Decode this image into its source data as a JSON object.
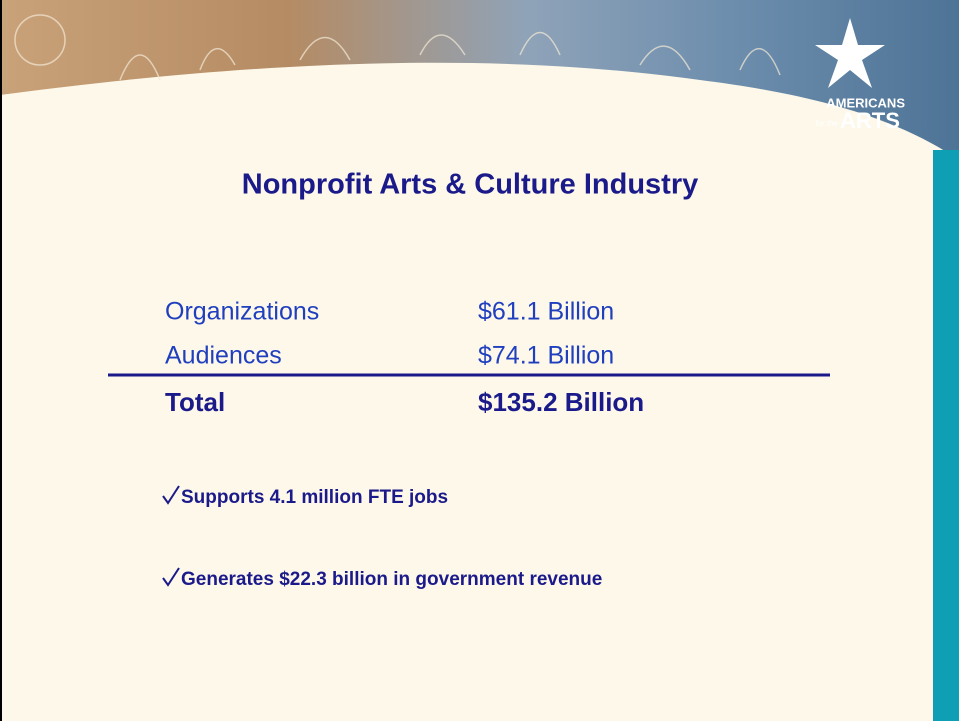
{
  "logo": {
    "line1": "AMERICANS",
    "prefix": "for the",
    "line2": "ARTS"
  },
  "title": "Nonprofit Arts & Culture Industry",
  "table": {
    "rows": [
      [
        "Organizations",
        "$61.1 Billion"
      ],
      [
        "Audiences",
        "$74.1 Billion"
      ],
      [
        "Total",
        "$135.2 Billion"
      ]
    ]
  },
  "bullets": [
    "Supports 4.1 million FTE jobs",
    "Generates $22.3 billion in government revenue"
  ]
}
